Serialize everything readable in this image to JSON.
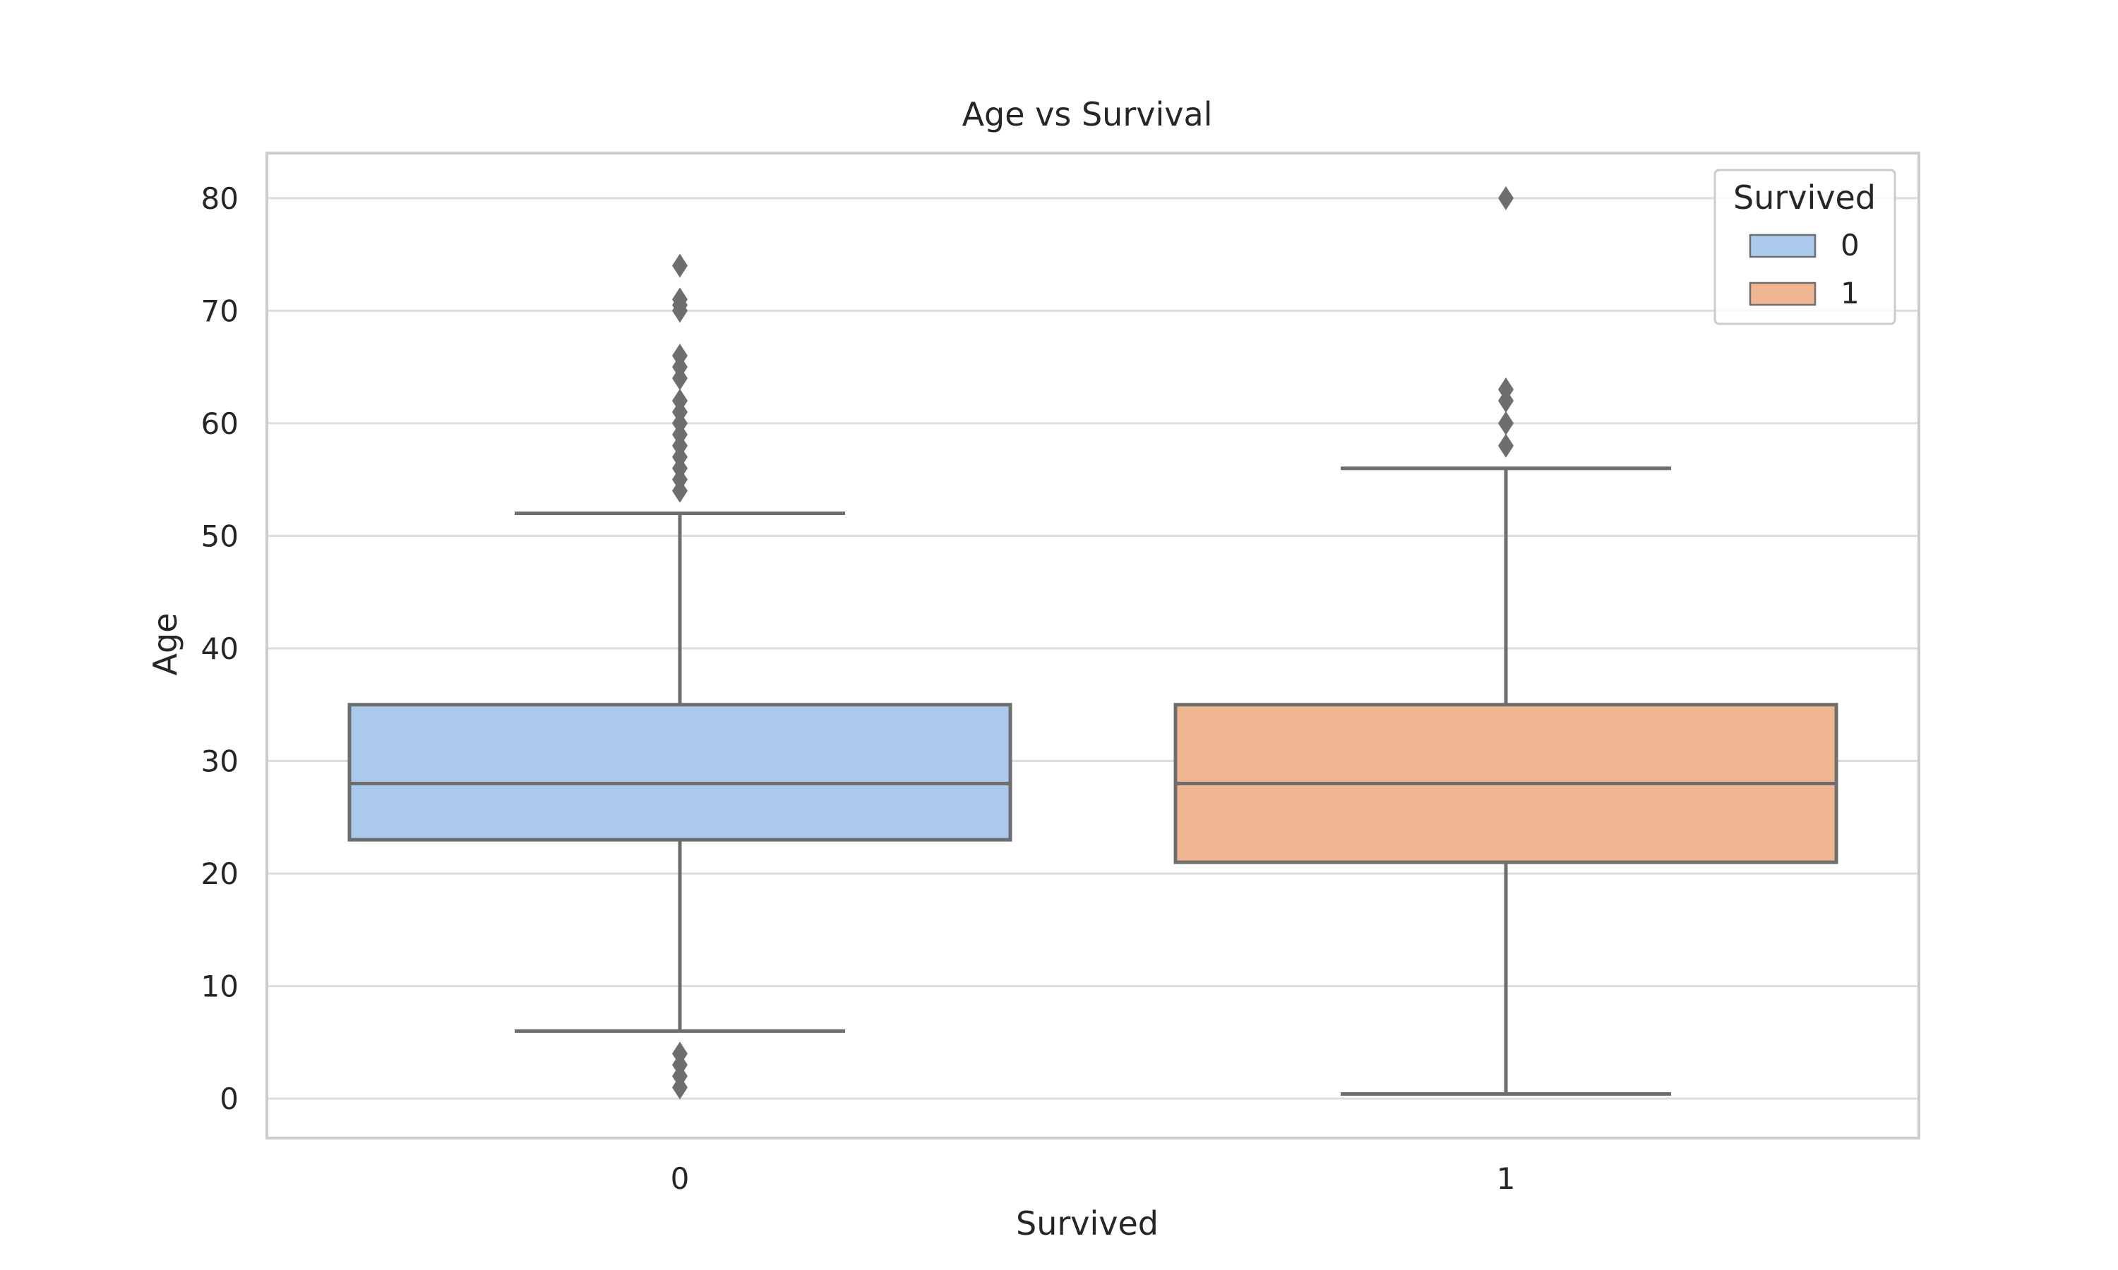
{
  "chart_data": {
    "type": "box",
    "title": "Age vs Survival",
    "xlabel": "Survived",
    "ylabel": "Age",
    "ylim": [
      -3.5,
      84
    ],
    "yticks": [
      0,
      10,
      20,
      30,
      40,
      50,
      60,
      70,
      80
    ],
    "categories": [
      "0",
      "1"
    ],
    "grid": true,
    "legend": {
      "title": "Survived",
      "placement": "top-right",
      "entries": [
        {
          "label": "0",
          "color": "#abc9ed"
        },
        {
          "label": "1",
          "color": "#f0b692"
        }
      ]
    },
    "series": [
      {
        "category": "0",
        "color": "#abc9ed",
        "whisker_low": 6,
        "q1": 23,
        "median": 28,
        "q3": 35,
        "whisker_high": 52,
        "outliers": [
          1,
          2,
          3,
          4,
          54,
          55,
          56,
          57,
          58,
          59,
          60,
          61,
          62,
          64,
          65,
          66,
          70,
          70.5,
          71,
          74
        ]
      },
      {
        "category": "1",
        "color": "#f0b692",
        "whisker_low": 0.42,
        "q1": 21,
        "median": 28,
        "q3": 35,
        "whisker_high": 56,
        "outliers": [
          58,
          60,
          62,
          63,
          80
        ]
      }
    ]
  }
}
